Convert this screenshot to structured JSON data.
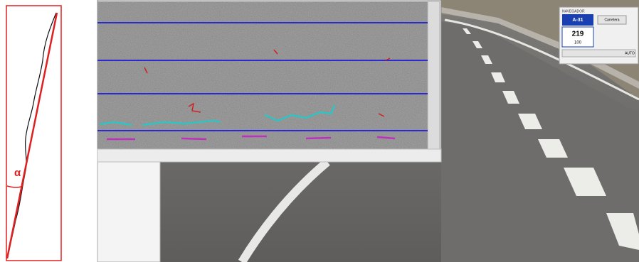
{
  "diagram": {
    "angle_label": "α"
  },
  "navigator": {
    "title": "NAVEGADOR",
    "road": "A-31",
    "km": "219",
    "m": "100",
    "button": "Carretera",
    "auto": "AUTO"
  }
}
